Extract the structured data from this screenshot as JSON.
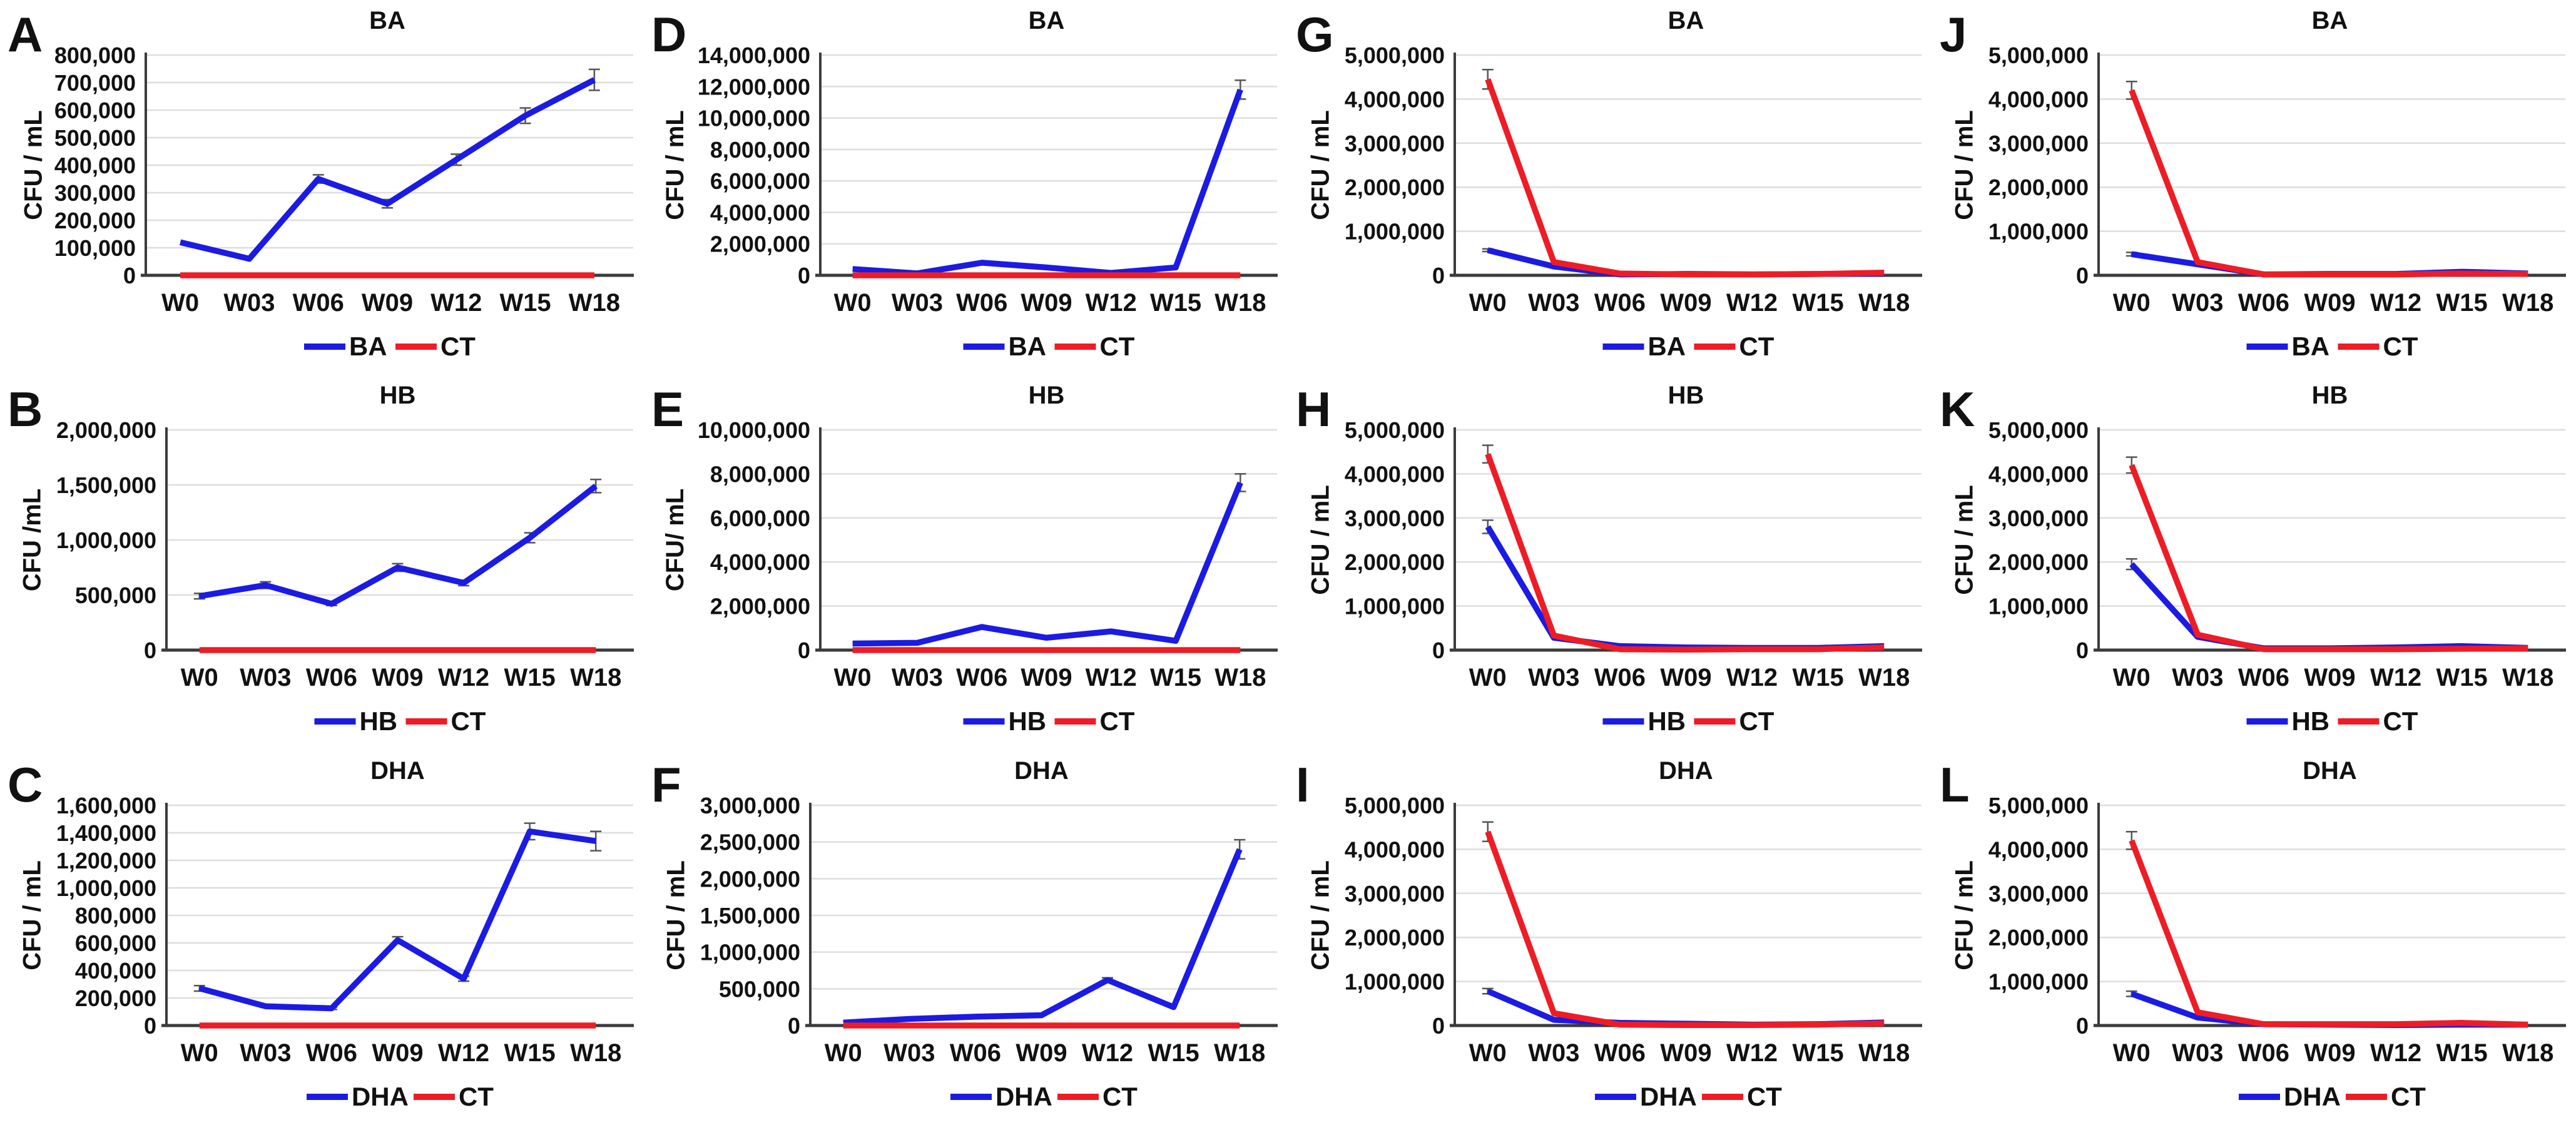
{
  "figure": {
    "description": "12-panel line chart figure, microbial counts over 18 weeks",
    "grid": {
      "columns": 4,
      "rows": 3
    },
    "colors": {
      "treatment_line": "#1b1be4",
      "ct_line": "#ee1c25",
      "gridline": "#dedede",
      "axis": "#3b3b3b",
      "error_bar": "#555555",
      "text": "#111111",
      "background": "#ffffff"
    }
  },
  "chart_data": [
    {
      "type": "line",
      "letter": "A",
      "title": "BA",
      "ylabel": "CFU / mL",
      "xlabel": "",
      "categories": [
        "W0",
        "W03",
        "W06",
        "W09",
        "W12",
        "W15",
        "W18"
      ],
      "ylim": [
        0,
        800000
      ],
      "ytick_step": 100000,
      "grid": true,
      "legend_position": "bottom",
      "series": [
        {
          "name": "BA",
          "color": "#1b1be4",
          "values": [
            120000,
            60000,
            350000,
            260000,
            420000,
            580000,
            710000
          ],
          "errors": [
            0,
            0,
            15000,
            15000,
            20000,
            28000,
            38000
          ]
        },
        {
          "name": "CT",
          "color": "#ee1c25",
          "values": [
            0,
            0,
            0,
            0,
            0,
            0,
            0
          ],
          "errors": [
            0,
            0,
            0,
            0,
            0,
            0,
            0
          ]
        }
      ]
    },
    {
      "type": "line",
      "letter": "D",
      "title": "BA",
      "ylabel": "CFU / mL",
      "xlabel": "",
      "categories": [
        "W0",
        "W03",
        "W06",
        "W09",
        "W12",
        "W15",
        "W18"
      ],
      "ylim": [
        0,
        14000000
      ],
      "ytick_step": 2000000,
      "grid": true,
      "legend_position": "bottom",
      "series": [
        {
          "name": "BA",
          "color": "#1b1be4",
          "values": [
            400000,
            120000,
            800000,
            500000,
            150000,
            500000,
            11800000
          ],
          "errors": [
            0,
            0,
            0,
            0,
            0,
            0,
            600000
          ]
        },
        {
          "name": "CT",
          "color": "#ee1c25",
          "values": [
            0,
            0,
            0,
            0,
            0,
            0,
            0
          ],
          "errors": [
            0,
            0,
            0,
            0,
            0,
            0,
            0
          ]
        }
      ]
    },
    {
      "type": "line",
      "letter": "G",
      "title": "BA",
      "ylabel": "CFU / mL",
      "xlabel": "",
      "categories": [
        "W0",
        "W03",
        "W06",
        "W09",
        "W12",
        "W15",
        "W18"
      ],
      "ylim": [
        0,
        5000000
      ],
      "ytick_step": 1000000,
      "grid": true,
      "legend_position": "bottom",
      "series": [
        {
          "name": "BA",
          "color": "#1b1be4",
          "values": [
            570000,
            200000,
            20000,
            30000,
            20000,
            30000,
            40000
          ],
          "errors": [
            30000,
            0,
            0,
            0,
            0,
            0,
            0
          ]
        },
        {
          "name": "CT",
          "color": "#ee1c25",
          "values": [
            4450000,
            300000,
            40000,
            20000,
            20000,
            30000,
            60000
          ],
          "errors": [
            220000,
            0,
            0,
            0,
            0,
            0,
            0
          ]
        }
      ]
    },
    {
      "type": "line",
      "letter": "J",
      "title": "BA",
      "ylabel": "CFU / mL",
      "xlabel": "",
      "categories": [
        "W0",
        "W03",
        "W06",
        "W09",
        "W12",
        "W15",
        "W18"
      ],
      "ylim": [
        0,
        5000000
      ],
      "ytick_step": 1000000,
      "grid": true,
      "legend_position": "bottom",
      "series": [
        {
          "name": "BA",
          "color": "#1b1be4",
          "values": [
            480000,
            250000,
            20000,
            30000,
            30000,
            80000,
            40000
          ],
          "errors": [
            40000,
            0,
            0,
            0,
            0,
            0,
            0
          ]
        },
        {
          "name": "CT",
          "color": "#ee1c25",
          "values": [
            4200000,
            300000,
            20000,
            20000,
            20000,
            40000,
            30000
          ],
          "errors": [
            200000,
            0,
            0,
            0,
            0,
            0,
            0
          ]
        }
      ]
    },
    {
      "type": "line",
      "letter": "B",
      "title": "HB",
      "ylabel": "CFU /mL",
      "xlabel": "",
      "categories": [
        "W0",
        "W03",
        "W06",
        "W09",
        "W12",
        "W15",
        "W18"
      ],
      "ylim": [
        0,
        2000000
      ],
      "ytick_step": 500000,
      "grid": true,
      "legend_position": "bottom",
      "series": [
        {
          "name": "HB",
          "color": "#1b1be4",
          "values": [
            490000,
            590000,
            420000,
            750000,
            610000,
            1020000,
            1490000
          ],
          "errors": [
            25000,
            30000,
            15000,
            35000,
            25000,
            45000,
            60000
          ]
        },
        {
          "name": "CT",
          "color": "#ee1c25",
          "values": [
            0,
            0,
            0,
            0,
            0,
            0,
            0
          ],
          "errors": [
            0,
            0,
            0,
            0,
            0,
            0,
            0
          ]
        }
      ]
    },
    {
      "type": "line",
      "letter": "E",
      "title": "HB",
      "ylabel": "CFU/ mL",
      "xlabel": "",
      "categories": [
        "W0",
        "W03",
        "W06",
        "W09",
        "W12",
        "W15",
        "W18"
      ],
      "ylim": [
        0,
        10000000
      ],
      "ytick_step": 2000000,
      "grid": true,
      "legend_position": "bottom",
      "series": [
        {
          "name": "HB",
          "color": "#1b1be4",
          "values": [
            300000,
            330000,
            1050000,
            560000,
            850000,
            420000,
            7600000
          ],
          "errors": [
            0,
            0,
            0,
            0,
            0,
            0,
            400000
          ]
        },
        {
          "name": "CT",
          "color": "#ee1c25",
          "values": [
            0,
            0,
            0,
            0,
            0,
            0,
            0
          ],
          "errors": [
            0,
            0,
            0,
            0,
            0,
            0,
            0
          ]
        }
      ]
    },
    {
      "type": "line",
      "letter": "H",
      "title": "HB",
      "ylabel": "CFU / mL",
      "xlabel": "",
      "categories": [
        "W0",
        "W03",
        "W06",
        "W09",
        "W12",
        "W15",
        "W18"
      ],
      "ylim": [
        0,
        5000000
      ],
      "ytick_step": 1000000,
      "grid": true,
      "legend_position": "bottom",
      "series": [
        {
          "name": "HB",
          "color": "#1b1be4",
          "values": [
            2800000,
            280000,
            90000,
            60000,
            50000,
            50000,
            90000
          ],
          "errors": [
            150000,
            0,
            0,
            0,
            0,
            0,
            0
          ]
        },
        {
          "name": "CT",
          "color": "#ee1c25",
          "values": [
            4450000,
            330000,
            20000,
            10000,
            20000,
            20000,
            60000
          ],
          "errors": [
            200000,
            0,
            0,
            0,
            0,
            0,
            0
          ]
        }
      ]
    },
    {
      "type": "line",
      "letter": "K",
      "title": "HB",
      "ylabel": "CFU / mL",
      "xlabel": "",
      "categories": [
        "W0",
        "W03",
        "W06",
        "W09",
        "W12",
        "W15",
        "W18"
      ],
      "ylim": [
        0,
        5000000
      ],
      "ytick_step": 1000000,
      "grid": true,
      "legend_position": "bottom",
      "series": [
        {
          "name": "HB",
          "color": "#1b1be4",
          "values": [
            1950000,
            300000,
            40000,
            40000,
            60000,
            90000,
            50000
          ],
          "errors": [
            120000,
            0,
            0,
            0,
            0,
            0,
            0
          ]
        },
        {
          "name": "CT",
          "color": "#ee1c25",
          "values": [
            4200000,
            350000,
            20000,
            20000,
            20000,
            30000,
            40000
          ],
          "errors": [
            180000,
            0,
            0,
            0,
            0,
            0,
            0
          ]
        }
      ]
    },
    {
      "type": "line",
      "letter": "C",
      "title": "DHA",
      "ylabel": "CFU / mL",
      "xlabel": "",
      "categories": [
        "W0",
        "W03",
        "W06",
        "W09",
        "W12",
        "W15",
        "W18"
      ],
      "ylim": [
        0,
        1600000
      ],
      "ytick_step": 200000,
      "grid": true,
      "legend_position": "bottom",
      "series": [
        {
          "name": "DHA",
          "color": "#1b1be4",
          "values": [
            270000,
            140000,
            125000,
            620000,
            340000,
            1410000,
            1340000
          ],
          "errors": [
            20000,
            8000,
            8000,
            25000,
            18000,
            60000,
            70000
          ]
        },
        {
          "name": "CT",
          "color": "#ee1c25",
          "values": [
            0,
            0,
            0,
            0,
            0,
            0,
            0
          ],
          "errors": [
            0,
            0,
            0,
            0,
            0,
            0,
            0
          ]
        }
      ]
    },
    {
      "type": "line",
      "letter": "F",
      "title": "DHA",
      "ylabel": "CFU / mL",
      "xlabel": "",
      "categories": [
        "W0",
        "W03",
        "W06",
        "W09",
        "W12",
        "W15",
        "W18"
      ],
      "ylim": [
        0,
        3000000
      ],
      "ytick_step": 500000,
      "grid": true,
      "legend_position": "bottom",
      "series": [
        {
          "name": "DHA",
          "color": "#1b1be4",
          "values": [
            40000,
            90000,
            120000,
            140000,
            620000,
            250000,
            2400000
          ],
          "errors": [
            0,
            0,
            0,
            0,
            30000,
            0,
            130000
          ]
        },
        {
          "name": "CT",
          "color": "#ee1c25",
          "values": [
            0,
            0,
            0,
            0,
            0,
            0,
            0
          ],
          "errors": [
            0,
            0,
            0,
            0,
            0,
            0,
            0
          ]
        }
      ]
    },
    {
      "type": "line",
      "letter": "I",
      "title": "DHA",
      "ylabel": "CFU / mL",
      "xlabel": "",
      "categories": [
        "W0",
        "W03",
        "W06",
        "W09",
        "W12",
        "W15",
        "W18"
      ],
      "ylim": [
        0,
        5000000
      ],
      "ytick_step": 1000000,
      "grid": true,
      "legend_position": "bottom",
      "series": [
        {
          "name": "DHA",
          "color": "#1b1be4",
          "values": [
            780000,
            130000,
            60000,
            40000,
            20000,
            30000,
            70000
          ],
          "errors": [
            60000,
            0,
            0,
            0,
            0,
            0,
            0
          ]
        },
        {
          "name": "CT",
          "color": "#ee1c25",
          "values": [
            4400000,
            280000,
            20000,
            10000,
            10000,
            20000,
            50000
          ],
          "errors": [
            220000,
            0,
            0,
            0,
            0,
            0,
            0
          ]
        }
      ]
    },
    {
      "type": "line",
      "letter": "L",
      "title": "DHA",
      "ylabel": "CFU / mL",
      "xlabel": "",
      "categories": [
        "W0",
        "W03",
        "W06",
        "W09",
        "W12",
        "W15",
        "W18"
      ],
      "ylim": [
        0,
        5000000
      ],
      "ytick_step": 1000000,
      "grid": true,
      "legend_position": "bottom",
      "series": [
        {
          "name": "DHA",
          "color": "#1b1be4",
          "values": [
            720000,
            180000,
            30000,
            20000,
            10000,
            20000,
            20000
          ],
          "errors": [
            60000,
            0,
            0,
            0,
            0,
            0,
            0
          ]
        },
        {
          "name": "CT",
          "color": "#ee1c25",
          "values": [
            4200000,
            300000,
            30000,
            30000,
            30000,
            60000,
            20000
          ],
          "errors": [
            200000,
            0,
            0,
            0,
            0,
            0,
            0
          ]
        }
      ]
    }
  ]
}
